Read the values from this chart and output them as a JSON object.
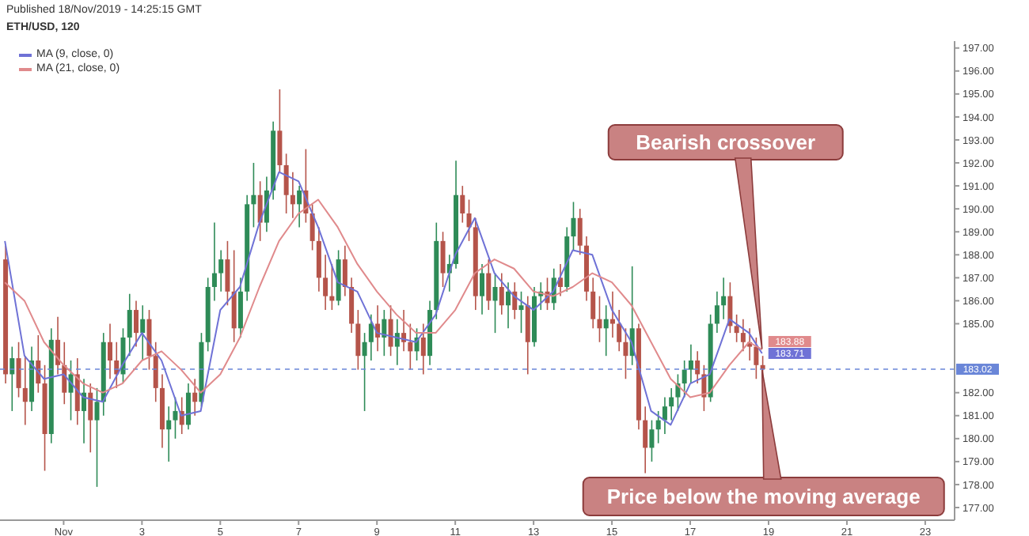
{
  "chart_data": {
    "type": "candlestick",
    "title": "ETH/USD, 120",
    "annotations": [
      "Published 18/Nov/2019 - 14:25:15 GMT",
      {
        "text": "Bearish crossover",
        "x": "2019-11-18T20:00",
        "y": 183.9
      },
      {
        "text": "Price below the moving average",
        "x": "2019-11-18T20:00",
        "y": 183.0
      }
    ],
    "x": [
      "2019-10-30T12:00",
      "2019-10-30T16:00",
      "2019-10-30T20:00",
      "2019-10-31T00:00",
      "2019-10-31T04:00",
      "2019-10-31T08:00",
      "2019-10-31T12:00",
      "2019-10-31T16:00",
      "2019-10-31T20:00",
      "2019-11-01T00:00",
      "2019-11-01T04:00",
      "2019-11-01T08:00",
      "2019-11-01T12:00",
      "2019-11-01T16:00",
      "2019-11-01T20:00",
      "2019-11-02T00:00",
      "2019-11-02T04:00",
      "2019-11-02T08:00",
      "2019-11-02T12:00",
      "2019-11-02T16:00",
      "2019-11-02T20:00",
      "2019-11-03T00:00",
      "2019-11-03T04:00",
      "2019-11-03T08:00",
      "2019-11-03T12:00",
      "2019-11-03T16:00",
      "2019-11-03T20:00",
      "2019-11-04T00:00",
      "2019-11-04T04:00",
      "2019-11-04T08:00",
      "2019-11-04T12:00",
      "2019-11-04T16:00",
      "2019-11-04T20:00",
      "2019-11-05T00:00",
      "2019-11-05T04:00",
      "2019-11-05T08:00",
      "2019-11-05T12:00",
      "2019-11-05T16:00",
      "2019-11-05T20:00",
      "2019-11-06T00:00",
      "2019-11-06T04:00",
      "2019-11-06T08:00",
      "2019-11-06T12:00",
      "2019-11-06T16:00",
      "2019-11-06T20:00",
      "2019-11-07T00:00",
      "2019-11-07T04:00",
      "2019-11-07T08:00",
      "2019-11-07T12:00",
      "2019-11-07T16:00",
      "2019-11-07T20:00",
      "2019-11-08T00:00",
      "2019-11-08T04:00",
      "2019-11-08T08:00",
      "2019-11-08T12:00",
      "2019-11-08T16:00",
      "2019-11-08T20:00",
      "2019-11-09T00:00",
      "2019-11-09T04:00",
      "2019-11-09T08:00",
      "2019-11-09T12:00",
      "2019-11-09T16:00",
      "2019-11-09T20:00",
      "2019-11-10T00:00",
      "2019-11-10T04:00",
      "2019-11-10T08:00",
      "2019-11-10T12:00",
      "2019-11-10T16:00",
      "2019-11-10T20:00",
      "2019-11-11T00:00",
      "2019-11-11T04:00",
      "2019-11-11T08:00",
      "2019-11-11T12:00",
      "2019-11-11T16:00",
      "2019-11-11T20:00",
      "2019-11-12T00:00",
      "2019-11-12T04:00",
      "2019-11-12T08:00",
      "2019-11-12T12:00",
      "2019-11-12T16:00",
      "2019-11-12T20:00",
      "2019-11-13T00:00",
      "2019-11-13T04:00",
      "2019-11-13T08:00",
      "2019-11-13T12:00",
      "2019-11-13T16:00",
      "2019-11-13T20:00",
      "2019-11-14T00:00",
      "2019-11-14T04:00",
      "2019-11-14T08:00",
      "2019-11-14T12:00",
      "2019-11-14T16:00",
      "2019-11-14T20:00",
      "2019-11-15T00:00",
      "2019-11-15T04:00",
      "2019-11-15T08:00",
      "2019-11-15T12:00",
      "2019-11-15T16:00",
      "2019-11-15T20:00",
      "2019-11-16T00:00",
      "2019-11-16T04:00",
      "2019-11-16T08:00",
      "2019-11-16T12:00",
      "2019-11-16T16:00",
      "2019-11-16T20:00",
      "2019-11-17T00:00",
      "2019-11-17T04:00",
      "2019-11-17T08:00",
      "2019-11-17T12:00",
      "2019-11-17T16:00",
      "2019-11-17T20:00",
      "2019-11-18T00:00",
      "2019-11-18T04:00",
      "2019-11-18T08:00",
      "2019-11-18T12:00",
      "2019-11-18T16:00",
      "2019-11-18T20:00"
    ],
    "ohlc": [
      [
        187.8,
        188.4,
        182.4,
        182.8
      ],
      [
        182.8,
        184.0,
        181.2,
        183.5
      ],
      [
        183.5,
        184.2,
        181.8,
        182.2
      ],
      [
        182.2,
        183.6,
        180.6,
        181.6
      ],
      [
        181.6,
        184.0,
        181.2,
        183.4
      ],
      [
        183.4,
        184.5,
        182.0,
        182.4
      ],
      [
        182.4,
        183.2,
        178.6,
        180.2
      ],
      [
        180.2,
        184.8,
        179.8,
        184.3
      ],
      [
        184.3,
        185.3,
        182.8,
        183.2
      ],
      [
        183.2,
        184.2,
        181.5,
        182.0
      ],
      [
        182.0,
        183.4,
        180.8,
        182.8
      ],
      [
        182.8,
        183.5,
        180.6,
        181.2
      ],
      [
        181.2,
        182.6,
        179.8,
        182.0
      ],
      [
        182.0,
        182.4,
        179.4,
        180.8
      ],
      [
        180.8,
        182.2,
        177.9,
        181.6
      ],
      [
        181.6,
        184.6,
        181.0,
        184.2
      ],
      [
        184.2,
        185.0,
        182.6,
        183.4
      ],
      [
        183.4,
        184.2,
        182.2,
        182.8
      ],
      [
        182.8,
        184.8,
        182.4,
        184.4
      ],
      [
        184.4,
        186.3,
        183.6,
        185.6
      ],
      [
        185.6,
        186.0,
        184.0,
        184.6
      ],
      [
        184.6,
        185.8,
        183.4,
        185.2
      ],
      [
        185.2,
        185.6,
        183.0,
        183.6
      ],
      [
        183.6,
        184.2,
        181.6,
        182.2
      ],
      [
        182.2,
        182.8,
        179.6,
        180.4
      ],
      [
        180.4,
        181.4,
        179.0,
        180.8
      ],
      [
        180.8,
        181.8,
        180.0,
        181.2
      ],
      [
        181.2,
        181.8,
        180.2,
        180.6
      ],
      [
        180.6,
        182.4,
        180.4,
        182.0
      ],
      [
        182.0,
        182.6,
        181.0,
        181.6
      ],
      [
        181.6,
        184.6,
        181.4,
        184.2
      ],
      [
        184.2,
        187.0,
        183.8,
        186.6
      ],
      [
        186.6,
        189.4,
        186.0,
        187.2
      ],
      [
        187.2,
        188.2,
        186.4,
        187.8
      ],
      [
        187.8,
        188.6,
        185.8,
        186.4
      ],
      [
        186.4,
        188.2,
        184.2,
        184.8
      ],
      [
        184.8,
        187.0,
        184.4,
        186.4
      ],
      [
        186.4,
        190.6,
        186.0,
        190.2
      ],
      [
        190.2,
        192.0,
        189.2,
        190.6
      ],
      [
        190.6,
        191.2,
        188.6,
        189.4
      ],
      [
        189.4,
        191.4,
        189.0,
        190.8
      ],
      [
        190.8,
        193.8,
        190.4,
        193.4
      ],
      [
        193.4,
        195.2,
        191.6,
        191.9
      ],
      [
        191.9,
        192.4,
        189.8,
        190.6
      ],
      [
        190.6,
        191.6,
        189.6,
        190.2
      ],
      [
        190.2,
        191.0,
        189.2,
        190.8
      ],
      [
        190.8,
        192.6,
        189.4,
        189.8
      ],
      [
        189.8,
        190.2,
        188.2,
        188.6
      ],
      [
        188.6,
        189.2,
        186.4,
        187.0
      ],
      [
        187.0,
        188.0,
        185.6,
        186.2
      ],
      [
        186.2,
        187.6,
        185.6,
        186.0
      ],
      [
        186.0,
        188.2,
        185.8,
        187.8
      ],
      [
        187.8,
        188.4,
        186.2,
        186.6
      ],
      [
        186.6,
        187.0,
        184.6,
        185.0
      ],
      [
        185.0,
        185.6,
        183.0,
        183.6
      ],
      [
        183.6,
        184.6,
        181.2,
        184.2
      ],
      [
        184.2,
        185.4,
        183.4,
        185.0
      ],
      [
        185.0,
        185.8,
        183.8,
        184.4
      ],
      [
        184.4,
        185.6,
        183.6,
        185.2
      ],
      [
        185.2,
        185.8,
        183.6,
        184.0
      ],
      [
        184.0,
        185.2,
        183.2,
        184.6
      ],
      [
        184.6,
        185.6,
        183.8,
        184.2
      ],
      [
        184.2,
        185.0,
        183.0,
        183.8
      ],
      [
        183.8,
        184.8,
        183.4,
        184.4
      ],
      [
        184.4,
        185.0,
        182.8,
        183.6
      ],
      [
        183.6,
        186.0,
        183.2,
        185.6
      ],
      [
        185.6,
        189.4,
        185.2,
        188.6
      ],
      [
        188.6,
        189.0,
        186.6,
        187.2
      ],
      [
        187.2,
        188.0,
        186.4,
        187.6
      ],
      [
        187.6,
        192.1,
        187.4,
        190.6
      ],
      [
        190.6,
        191.0,
        189.4,
        189.8
      ],
      [
        189.8,
        190.4,
        188.6,
        189.2
      ],
      [
        189.2,
        189.6,
        185.6,
        186.2
      ],
      [
        186.2,
        187.6,
        185.4,
        187.2
      ],
      [
        187.2,
        187.8,
        185.6,
        186.0
      ],
      [
        186.0,
        187.2,
        184.6,
        186.6
      ],
      [
        186.6,
        187.2,
        185.4,
        185.8
      ],
      [
        185.8,
        186.8,
        184.8,
        186.4
      ],
      [
        186.4,
        186.8,
        185.2,
        185.6
      ],
      [
        185.6,
        186.4,
        184.6,
        185.8
      ],
      [
        185.8,
        186.2,
        182.8,
        184.2
      ],
      [
        184.2,
        186.6,
        184.0,
        186.2
      ],
      [
        186.2,
        186.8,
        185.6,
        186.4
      ],
      [
        186.4,
        187.0,
        185.6,
        185.9
      ],
      [
        185.9,
        187.4,
        185.6,
        187.0
      ],
      [
        187.0,
        187.6,
        186.2,
        186.6
      ],
      [
        186.6,
        189.2,
        186.4,
        188.8
      ],
      [
        188.8,
        190.3,
        188.2,
        189.6
      ],
      [
        189.6,
        190.0,
        188.0,
        188.4
      ],
      [
        188.4,
        188.8,
        186.0,
        186.4
      ],
      [
        186.4,
        187.0,
        184.8,
        185.2
      ],
      [
        185.2,
        186.2,
        184.2,
        184.8
      ],
      [
        184.8,
        185.8,
        183.6,
        185.2
      ],
      [
        185.2,
        186.4,
        184.4,
        185.0
      ],
      [
        185.0,
        185.6,
        183.8,
        184.2
      ],
      [
        184.2,
        184.8,
        182.6,
        183.6
      ],
      [
        183.6,
        187.5,
        183.2,
        184.8
      ],
      [
        184.8,
        185.0,
        180.4,
        180.8
      ],
      [
        180.8,
        181.4,
        178.5,
        179.6
      ],
      [
        179.6,
        180.8,
        179.0,
        180.4
      ],
      [
        180.4,
        181.2,
        179.8,
        180.8
      ],
      [
        180.8,
        181.8,
        180.2,
        181.4
      ],
      [
        181.4,
        182.2,
        180.8,
        181.8
      ],
      [
        181.8,
        182.8,
        181.2,
        182.4
      ],
      [
        182.4,
        183.4,
        181.8,
        183.0
      ],
      [
        183.0,
        184.1,
        182.4,
        183.4
      ],
      [
        183.4,
        183.8,
        182.4,
        182.8
      ],
      [
        182.8,
        183.2,
        181.2,
        181.8
      ],
      [
        181.8,
        185.4,
        181.6,
        185.0
      ],
      [
        185.0,
        186.4,
        184.6,
        185.8
      ],
      [
        185.8,
        187.0,
        185.2,
        186.2
      ],
      [
        186.2,
        186.8,
        184.6,
        184.9
      ],
      [
        184.9,
        185.4,
        184.2,
        184.6
      ],
      [
        184.6,
        185.2,
        183.8,
        184.2
      ],
      [
        184.2,
        184.8,
        183.4,
        184.0
      ],
      [
        184.0,
        184.4,
        182.6,
        183.2
      ],
      [
        183.2,
        183.6,
        182.4,
        183.02
      ]
    ],
    "colors": [
      "#b5544a",
      "#2e8b57",
      "#b5544a",
      "#b5544a",
      "#2e8b57",
      "#b5544a",
      "#b5544a",
      "#2e8b57",
      "#b5544a",
      "#b5544a",
      "#2e8b57",
      "#b5544a",
      "#2e8b57",
      "#b5544a",
      "#2e8b57",
      "#2e8b57",
      "#b5544a",
      "#b5544a",
      "#2e8b57",
      "#2e8b57",
      "#b5544a",
      "#2e8b57",
      "#b5544a",
      "#b5544a",
      "#b5544a",
      "#2e8b57",
      "#2e8b57",
      "#b5544a",
      "#2e8b57",
      "#b5544a",
      "#2e8b57",
      "#2e8b57",
      "#2e8b57",
      "#2e8b57",
      "#b5544a",
      "#b5544a",
      "#2e8b57",
      "#2e8b57",
      "#2e8b57",
      "#b5544a",
      "#2e8b57",
      "#2e8b57",
      "#b5544a",
      "#b5544a",
      "#b5544a",
      "#2e8b57",
      "#b5544a",
      "#b5544a",
      "#b5544a",
      "#b5544a",
      "#b5544a",
      "#2e8b57",
      "#b5544a",
      "#b5544a",
      "#b5544a",
      "#2e8b57",
      "#2e8b57",
      "#b5544a",
      "#2e8b57",
      "#b5544a",
      "#2e8b57",
      "#b5544a",
      "#b5544a",
      "#2e8b57",
      "#b5544a",
      "#2e8b57",
      "#2e8b57",
      "#b5544a",
      "#2e8b57",
      "#2e8b57",
      "#b5544a",
      "#b5544a",
      "#b5544a",
      "#2e8b57",
      "#b5544a",
      "#2e8b57",
      "#b5544a",
      "#2e8b57",
      "#b5544a",
      "#2e8b57",
      "#b5544a",
      "#2e8b57",
      "#2e8b57",
      "#b5544a",
      "#2e8b57",
      "#b5544a",
      "#2e8b57",
      "#2e8b57",
      "#b5544a",
      "#b5544a",
      "#b5544a",
      "#b5544a",
      "#2e8b57",
      "#b5544a",
      "#b5544a",
      "#b5544a",
      "#2e8b57",
      "#b5544a",
      "#b5544a",
      "#2e8b57",
      "#2e8b57",
      "#2e8b57",
      "#2e8b57",
      "#2e8b57",
      "#2e8b57",
      "#2e8b57",
      "#b5544a",
      "#b5544a",
      "#2e8b57",
      "#2e8b57",
      "#2e8b57",
      "#b5544a",
      "#b5544a",
      "#b5544a",
      "#b5544a",
      "#b5544a",
      "#b5544a"
    ],
    "series": [
      {
        "type": "line",
        "name": "MA (9, close, 0)",
        "color": "#6f72d6",
        "x": [
          "2019-10-30T12:00",
          "2019-10-31T00:00",
          "2019-10-31T12:00",
          "2019-11-01T00:00",
          "2019-11-01T12:00",
          "2019-11-02T00:00",
          "2019-11-02T12:00",
          "2019-11-03T00:00",
          "2019-11-03T12:00",
          "2019-11-04T00:00",
          "2019-11-04T12:00",
          "2019-11-05T00:00",
          "2019-11-05T12:00",
          "2019-11-06T00:00",
          "2019-11-06T12:00",
          "2019-11-07T00:00",
          "2019-11-07T12:00",
          "2019-11-08T00:00",
          "2019-11-08T12:00",
          "2019-11-09T00:00",
          "2019-11-09T12:00",
          "2019-11-10T00:00",
          "2019-11-10T12:00",
          "2019-11-11T00:00",
          "2019-11-11T12:00",
          "2019-11-12T00:00",
          "2019-11-12T12:00",
          "2019-11-13T00:00",
          "2019-11-13T12:00",
          "2019-11-14T00:00",
          "2019-11-14T12:00",
          "2019-11-15T00:00",
          "2019-11-15T12:00",
          "2019-11-16T00:00",
          "2019-11-16T12:00",
          "2019-11-17T00:00",
          "2019-11-17T12:00",
          "2019-11-18T00:00",
          "2019-11-18T12:00",
          "2019-11-18T20:00"
        ],
        "values": [
          188.6,
          183.6,
          182.6,
          182.8,
          181.8,
          181.6,
          183.2,
          184.6,
          183.4,
          181.0,
          181.2,
          185.6,
          186.6,
          189.4,
          191.6,
          191.2,
          189.2,
          186.8,
          186.4,
          184.6,
          184.4,
          184.2,
          185.4,
          188.0,
          189.6,
          187.2,
          186.2,
          185.6,
          186.4,
          188.2,
          188.0,
          185.6,
          184.2,
          181.2,
          180.6,
          182.4,
          182.8,
          185.2,
          184.6,
          183.71
        ],
        "value_labels": [
          null,
          null,
          null,
          null,
          null,
          null,
          null,
          null,
          null,
          null,
          null,
          null,
          null,
          null,
          null,
          null,
          null,
          null,
          null,
          null,
          null,
          null,
          null,
          null,
          null,
          null,
          null,
          null,
          null,
          null,
          null,
          null,
          null,
          null,
          null,
          null,
          null,
          null,
          null,
          "183.71"
        ]
      },
      {
        "type": "line",
        "name": "MA (21, close, 0)",
        "color": "#e08a8c",
        "x": [
          "2019-10-30T12:00",
          "2019-10-31T00:00",
          "2019-10-31T12:00",
          "2019-11-01T00:00",
          "2019-11-01T12:00",
          "2019-11-02T00:00",
          "2019-11-02T12:00",
          "2019-11-03T00:00",
          "2019-11-03T12:00",
          "2019-11-04T00:00",
          "2019-11-04T12:00",
          "2019-11-05T00:00",
          "2019-11-05T12:00",
          "2019-11-06T00:00",
          "2019-11-06T12:00",
          "2019-11-07T00:00",
          "2019-11-07T12:00",
          "2019-11-08T00:00",
          "2019-11-08T12:00",
          "2019-11-09T00:00",
          "2019-11-09T12:00",
          "2019-11-10T00:00",
          "2019-11-10T12:00",
          "2019-11-11T00:00",
          "2019-11-11T12:00",
          "2019-11-12T00:00",
          "2019-11-12T12:00",
          "2019-11-13T00:00",
          "2019-11-13T12:00",
          "2019-11-14T00:00",
          "2019-11-14T12:00",
          "2019-11-15T00:00",
          "2019-11-15T12:00",
          "2019-11-16T00:00",
          "2019-11-16T12:00",
          "2019-11-17T00:00",
          "2019-11-17T12:00",
          "2019-11-18T00:00",
          "2019-11-18T12:00",
          "2019-11-18T20:00"
        ],
        "values": [
          186.8,
          186.0,
          184.2,
          183.2,
          182.4,
          182.0,
          182.4,
          183.4,
          183.8,
          183.0,
          182.0,
          182.8,
          184.4,
          186.6,
          188.6,
          189.8,
          190.4,
          189.2,
          187.6,
          186.4,
          185.4,
          184.6,
          184.6,
          185.6,
          187.2,
          187.8,
          187.4,
          186.4,
          186.2,
          186.6,
          187.2,
          186.8,
          185.8,
          184.2,
          182.6,
          181.8,
          182.0,
          183.2,
          184.2,
          183.88
        ],
        "value_labels": [
          null,
          null,
          null,
          null,
          null,
          null,
          null,
          null,
          null,
          null,
          null,
          null,
          null,
          null,
          null,
          null,
          null,
          null,
          null,
          null,
          null,
          null,
          null,
          null,
          null,
          null,
          null,
          null,
          null,
          null,
          null,
          null,
          null,
          null,
          null,
          null,
          null,
          null,
          null,
          "183.88"
        ]
      }
    ],
    "ref_lines": [
      {
        "axis": "y",
        "value": 183.02,
        "label": "183.02",
        "color": "#6a86d8",
        "line_style": "dashed"
      }
    ],
    "xlim": [
      "2019-10-30T09:00",
      "2019-11-23T18:00"
    ],
    "xticks": [
      {
        "value": "2019-11-01",
        "label": "Nov"
      },
      {
        "value": "2019-11-03",
        "label": "3"
      },
      {
        "value": "2019-11-05",
        "label": "5"
      },
      {
        "value": "2019-11-07",
        "label": "7"
      },
      {
        "value": "2019-11-09",
        "label": "9"
      },
      {
        "value": "2019-11-11",
        "label": "11"
      },
      {
        "value": "2019-11-13",
        "label": "13"
      },
      {
        "value": "2019-11-15",
        "label": "15"
      },
      {
        "value": "2019-11-17",
        "label": "17"
      },
      {
        "value": "2019-11-19",
        "label": "19"
      },
      {
        "value": "2019-11-21",
        "label": "21"
      },
      {
        "value": "2019-11-23",
        "label": "23"
      }
    ],
    "ylim": [
      176.45,
      197.3
    ],
    "yticks": [
      {
        "value": 177,
        "label": "177.00"
      },
      {
        "value": 178,
        "label": "178.00"
      },
      {
        "value": 179,
        "label": "179.00"
      },
      {
        "value": 180,
        "label": "180.00"
      },
      {
        "value": 181,
        "label": "181.00"
      },
      {
        "value": 182,
        "label": "182.00"
      },
      {
        "value": 185,
        "label": "185.00"
      },
      {
        "value": 186,
        "label": "186.00"
      },
      {
        "value": 187,
        "label": "187.00"
      },
      {
        "value": 188,
        "label": "188.00"
      },
      {
        "value": 189,
        "label": "189.00"
      },
      {
        "value": 190,
        "label": "190.00"
      },
      {
        "value": 191,
        "label": "191.00"
      },
      {
        "value": 192,
        "label": "192.00"
      },
      {
        "value": 193,
        "label": "193.00"
      },
      {
        "value": 194,
        "label": "194.00"
      },
      {
        "value": 195,
        "label": "195.00"
      },
      {
        "value": 196,
        "label": "196.00"
      },
      {
        "value": 197,
        "label": "197.00"
      }
    ],
    "legend": "top left",
    "marker": "none"
  }
}
